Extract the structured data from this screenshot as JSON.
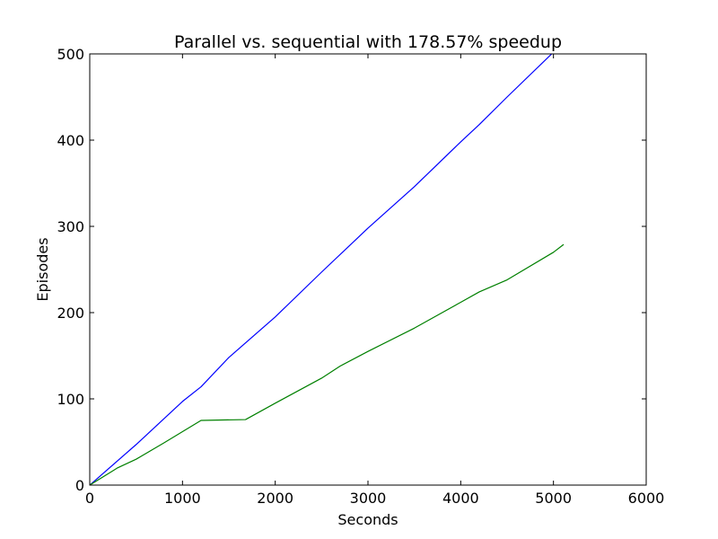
{
  "chart_data": {
    "type": "line",
    "title": "Parallel vs. sequential with 178.57% speedup",
    "xlabel": "Seconds",
    "ylabel": "Episodes",
    "xlim": [
      0,
      6000
    ],
    "ylim": [
      0,
      500
    ],
    "xticks": [
      0,
      1000,
      2000,
      3000,
      4000,
      5000,
      6000
    ],
    "yticks": [
      0,
      100,
      200,
      300,
      400,
      500
    ],
    "grid": false,
    "series": [
      {
        "color": "#0000ff",
        "x": [
          0,
          500,
          1000,
          1200,
          1500,
          2000,
          2500,
          3000,
          3500,
          4000,
          4200,
          4500,
          5000
        ],
        "y": [
          0,
          47,
          97,
          114,
          148,
          195,
          247,
          298,
          346,
          398,
          418,
          450,
          502
        ]
      },
      {
        "color": "#008000",
        "x": [
          0,
          300,
          500,
          800,
          1000,
          1200,
          1680,
          2000,
          2500,
          2700,
          3000,
          3500,
          4000,
          4200,
          4500,
          5000,
          5110
        ],
        "y": [
          0,
          20,
          30,
          49,
          62,
          75,
          76,
          95,
          124,
          138,
          155,
          182,
          212,
          224,
          238,
          270,
          279
        ]
      }
    ]
  }
}
